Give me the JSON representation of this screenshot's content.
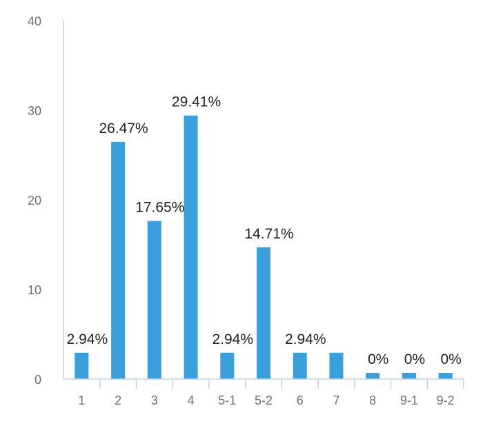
{
  "chart_data": {
    "type": "bar",
    "categories": [
      "1",
      "2",
      "3",
      "4",
      "5-1",
      "5-2",
      "6",
      "7",
      "8",
      "9-1",
      "9-2"
    ],
    "values": [
      2.94,
      26.47,
      17.65,
      29.41,
      2.94,
      14.71,
      2.94,
      2.94,
      0,
      0,
      0
    ],
    "data_labels": [
      "2.94%",
      "26.47%",
      "17.65%",
      "29.41%",
      "2.94%",
      "14.71%",
      "2.94%",
      "",
      "0%",
      "0%",
      "0%"
    ],
    "y_ticks": [
      "0",
      "10",
      "20",
      "30",
      "40"
    ],
    "ylim": [
      0,
      40
    ],
    "grid": false,
    "colors": {
      "bar": "#3aa0dc",
      "axis": "#c8cfe0"
    }
  }
}
